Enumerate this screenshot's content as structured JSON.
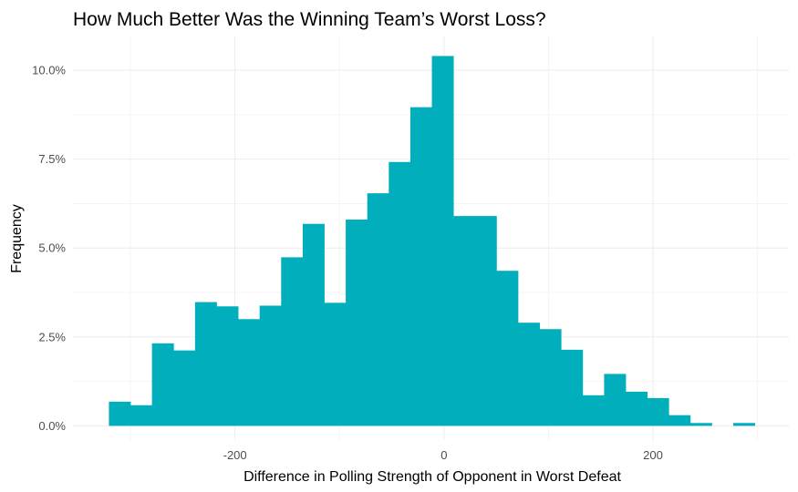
{
  "chart_data": {
    "type": "bar",
    "subtype": "histogram",
    "title": "How Much Better Was the Winning Team’s Worst Loss?",
    "xlabel": "Difference in Polling Strength of Opponent in Worst Defeat",
    "ylabel": "Frequency",
    "bin_width": 20.6,
    "bin_starts": [
      -320.6,
      -300.0,
      -279.4,
      -258.8,
      -238.2,
      -217.6,
      -197.0,
      -176.4,
      -155.8,
      -135.2,
      -114.6,
      -94.0,
      -73.4,
      -52.8,
      -32.2,
      -11.6,
      9.0,
      29.6,
      50.2,
      70.8,
      91.4,
      112.0,
      132.6,
      153.2,
      173.8,
      194.4,
      215.0,
      235.6,
      256.2,
      276.8,
      297.4
    ],
    "values": [
      0.0068,
      0.0058,
      0.0232,
      0.0212,
      0.0348,
      0.0336,
      0.03,
      0.0338,
      0.0474,
      0.0568,
      0.0346,
      0.058,
      0.0654,
      0.0742,
      0.0896,
      0.104,
      0.059,
      0.059,
      0.0436,
      0.029,
      0.0272,
      0.0214,
      0.0086,
      0.0146,
      0.0096,
      0.0078,
      0.003,
      0.0008,
      0.0,
      0.0008,
      0.0
    ],
    "xlim": [
      -355,
      330
    ],
    "ylim": [
      -0.004,
      0.1095
    ],
    "x_ticks": [
      {
        "value": -200,
        "label": "-200"
      },
      {
        "value": 0,
        "label": "0"
      },
      {
        "value": 200,
        "label": "200"
      }
    ],
    "y_ticks": [
      {
        "value": 0.0,
        "label": "0.0%"
      },
      {
        "value": 0.025,
        "label": "2.5%"
      },
      {
        "value": 0.05,
        "label": "5.0%"
      },
      {
        "value": 0.075,
        "label": "7.5%"
      },
      {
        "value": 0.1,
        "label": "10.0%"
      }
    ],
    "grid": true,
    "colors": {
      "bar": "#00AFBB",
      "grid_major": "#ebebeb",
      "grid_minor": "#f4f4f4",
      "background": "#ffffff"
    }
  }
}
